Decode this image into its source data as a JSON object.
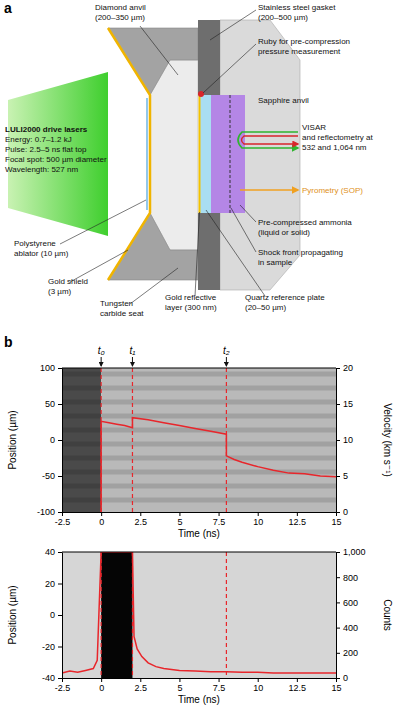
{
  "panel_labels": [
    "a",
    "b"
  ],
  "diagram": {
    "labels": {
      "diamond_anvil": [
        "Diamond anvil",
        "(200–350 µm)"
      ],
      "gasket": [
        "Stainless steel gasket",
        "(200–500 µm)"
      ],
      "ruby": [
        "Ruby for pre-compression",
        "pressure measurement"
      ],
      "sapphire": [
        "Sapphire anvil"
      ],
      "laser": [
        "LULI2000 drive lasers",
        "Energy: 0.7–1.2 kJ",
        "Pulse: 2.5–5 ns flat top",
        "Focal spot: 500 µm diameter",
        "Wavelength: 527 nm"
      ],
      "visar": [
        "VISAR",
        "and reflectometry at",
        "532 and 1,064 nm"
      ],
      "pyrometry": [
        "Pyrometry (SOP)"
      ],
      "ammonia": [
        "Pre-compressed ammonia",
        "(liquid or solid)"
      ],
      "shock": [
        "Shock front propagating",
        "in sample"
      ],
      "ablator": [
        "Polystyrene",
        "ablator (10 µm)"
      ],
      "gold_shield": [
        "Gold shield",
        "(3 µm)"
      ],
      "seat": [
        "Tungsten",
        "carbide seat"
      ],
      "gold_layer": [
        "Gold reflective",
        "layer (300 nm)"
      ],
      "quartz": [
        "Quartz reference plate",
        "(20–50 µm)"
      ]
    }
  },
  "chart_data": [
    {
      "type": "line",
      "x_label": "Time (ns)",
      "y_label": "Position (µm)",
      "y2_label": "Velocity (km s⁻¹)",
      "xlim": [
        -2.5,
        15
      ],
      "xticks": [
        -2.5,
        0,
        2.5,
        5,
        7.5,
        10,
        12.5,
        15
      ],
      "ylim": [
        -100,
        100
      ],
      "yticks": [
        -100,
        -50,
        0,
        50,
        100
      ],
      "y2lim": [
        0,
        20
      ],
      "y2ticks": [
        0,
        5,
        10,
        15,
        20
      ],
      "markers": [
        {
          "label": "t₀",
          "value": 0
        },
        {
          "label": "t₁",
          "value": 2
        },
        {
          "label": "t₂",
          "value": 8
        }
      ],
      "x": [
        0,
        0,
        0.5,
        1,
        1.5,
        2,
        2,
        3,
        4,
        5,
        6,
        7,
        8,
        8,
        8.5,
        9,
        10,
        11,
        12,
        13,
        14,
        15
      ],
      "series": [
        {
          "color": "#e8262b",
          "axis": "y2",
          "values": [
            0,
            12.6,
            12.4,
            12.2,
            12.0,
            11.7,
            13.1,
            12.8,
            12.4,
            12.0,
            11.6,
            11.2,
            10.8,
            7.8,
            7.3,
            6.9,
            6.3,
            5.8,
            5.4,
            5.3,
            5.0,
            4.9
          ]
        }
      ]
    },
    {
      "type": "line",
      "x_label": "Time (ns)",
      "y_label": "Position (µm)",
      "y2_label": "Counts",
      "xlim": [
        -2.5,
        15
      ],
      "xticks": [
        -2.5,
        0,
        2.5,
        5,
        7.5,
        10,
        12.5,
        15
      ],
      "ylim": [
        -40,
        40
      ],
      "yticks": [
        -40,
        -20,
        0,
        20,
        40
      ],
      "y2lim": [
        0,
        1000
      ],
      "y2ticks": [
        0,
        200,
        400,
        600,
        800,
        {
          "value": 1000,
          "label": "1,000"
        }
      ],
      "markers": [
        0,
        2,
        8
      ],
      "x": [
        -2.5,
        -2,
        -1.5,
        -1,
        -0.5,
        -0.25,
        0,
        2,
        2.1,
        2.3,
        2.6,
        3,
        3.5,
        4,
        5,
        6,
        7,
        8,
        9,
        10,
        11,
        12,
        13,
        14,
        15
      ],
      "series": [
        {
          "color": "#e8262b",
          "axis": "y2",
          "values": [
            40,
            55,
            45,
            60,
            75,
            140,
            1000,
            1000,
            330,
            230,
            170,
            120,
            90,
            75,
            60,
            55,
            50,
            50,
            45,
            45,
            40,
            40,
            40,
            40,
            40
          ]
        }
      ]
    }
  ]
}
